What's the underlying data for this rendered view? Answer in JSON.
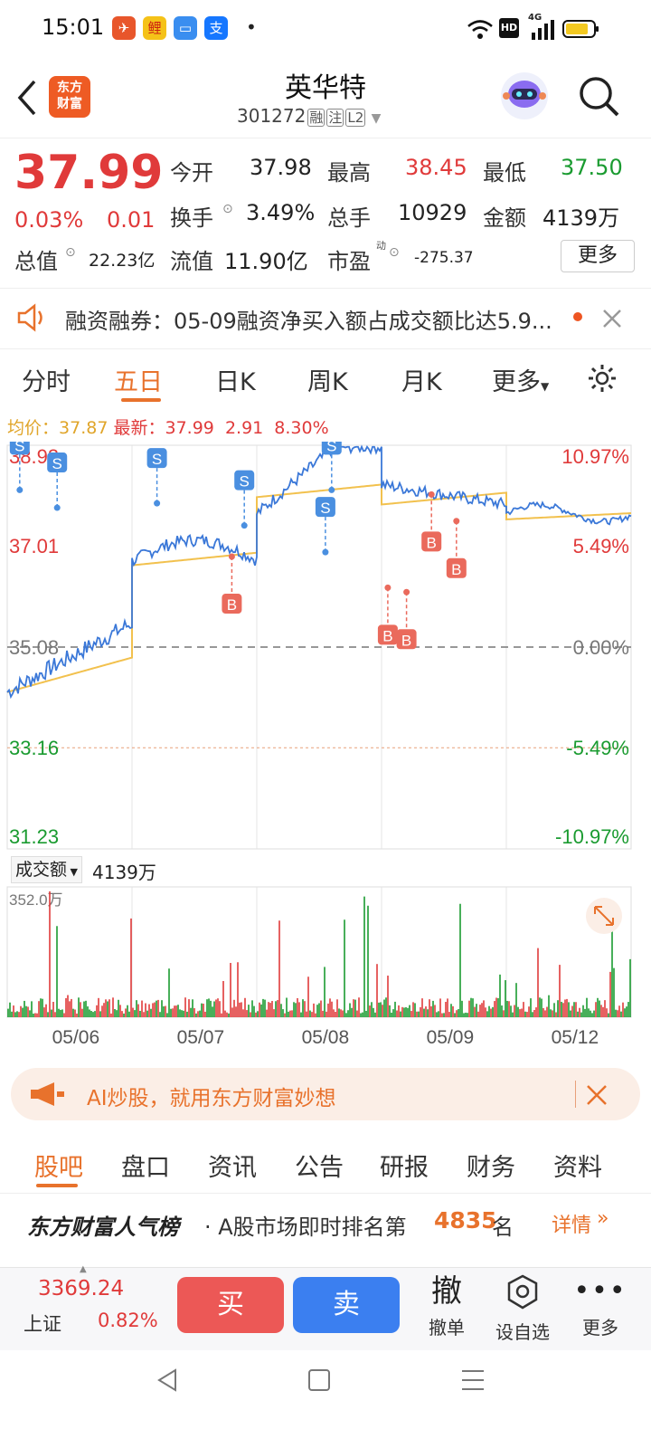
{
  "status": {
    "time": "15:01",
    "hd": "HD",
    "net": "4G"
  },
  "header": {
    "logo_line1": "东方",
    "logo_line2": "财富",
    "title": "英华特",
    "code": "301272",
    "tags": [
      "融",
      "注",
      "L2"
    ]
  },
  "quote": {
    "price": "37.99",
    "change_pct": "0.03%",
    "change": "0.01",
    "open_label": "今开",
    "open": "37.98",
    "high_label": "最高",
    "high": "38.45",
    "low_label": "最低",
    "low": "37.50",
    "turnover_label": "换手",
    "turnover": "3.49%",
    "volume_label": "总手",
    "volume": "10929",
    "amount_label": "金额",
    "amount": "4139万",
    "mktcap_label": "总值",
    "mktcap": "22.23亿",
    "float_label": "流值",
    "float": "11.90亿",
    "pe_label": "市盈",
    "pe_sup": "动",
    "pe": "-275.37",
    "more": "更多"
  },
  "notice": {
    "text": "融资融券：05-09融资净买入额占成交额比达5.9..."
  },
  "chart_tabs": [
    "分时",
    "五日",
    "日K",
    "周K",
    "月K",
    "更多"
  ],
  "chart_tab_active": "五日",
  "chart_info": {
    "avg_label": "均价：",
    "avg": "37.87",
    "last_label": "最新：",
    "last": "37.99",
    "chg": "2.91",
    "chg_pct": "8.30%"
  },
  "chart_data": {
    "type": "line",
    "x": [
      "05/06",
      "05/07",
      "05/08",
      "05/09",
      "05/12"
    ],
    "y_ticks_left": [
      "38.93",
      "37.01",
      "35.08",
      "33.16",
      "31.23"
    ],
    "y_ticks_right": [
      "10.97%",
      "5.49%",
      "0.00%",
      "-5.49%",
      "-10.97%"
    ],
    "ylim": [
      31.23,
      38.93
    ],
    "series": [
      {
        "values_by_day": [
          [
            34.0,
            36.2
          ],
          [
            36.0,
            37.6
          ],
          [
            37.3,
            38.9
          ],
          [
            37.2,
            38.7
          ],
          [
            37.2,
            37.99
          ]
        ]
      }
    ],
    "markers": [
      "S",
      "S",
      "S",
      "S",
      "S",
      "S",
      "B",
      "B",
      "B",
      "B",
      "B"
    ],
    "volume_label": "成交额",
    "volume_value": "4139万",
    "volume_max": "352.0万"
  },
  "ad": {
    "text": "AI炒股，就用东方财富妙想"
  },
  "section_tabs": [
    "股吧",
    "盘口",
    "资讯",
    "公告",
    "研报",
    "财务",
    "资料"
  ],
  "rank": {
    "brand": "东方财富人气榜",
    "text_pre": "· A股市场即时排名第",
    "rank": "4835",
    "text_post": "名",
    "detail": "详情"
  },
  "bottom": {
    "index_value": "3369.24",
    "index_name": "上证",
    "index_pct": "0.82%",
    "buy": "买",
    "sell": "卖",
    "cancel_big": "撤",
    "cancel": "撤单",
    "watch": "设自选",
    "more": "更多"
  },
  "colors": {
    "up": "#e03a3a",
    "down": "#1a9b30",
    "accent": "#e8722c",
    "price_line": "#3b78d8",
    "avg_line": "#f2c14e"
  }
}
